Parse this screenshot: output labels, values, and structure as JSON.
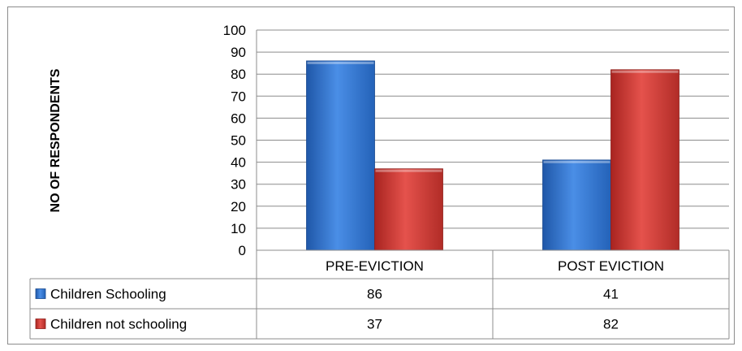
{
  "chart_data": {
    "type": "bar",
    "categories": [
      "PRE-EVICTION",
      "POST EVICTION"
    ],
    "series": [
      {
        "name": "Children Schooling",
        "values": [
          86,
          41
        ],
        "color": "#3a7bd5"
      },
      {
        "name": "Children not schooling",
        "values": [
          37,
          82
        ],
        "color": "#d9403b"
      }
    ],
    "ylabel": "NO OF RESPONDENTS",
    "ylim": [
      0,
      100
    ],
    "yticks": [
      0,
      10,
      20,
      30,
      40,
      50,
      60,
      70,
      80,
      90,
      100
    ],
    "grid": true,
    "legend": "data-table"
  }
}
